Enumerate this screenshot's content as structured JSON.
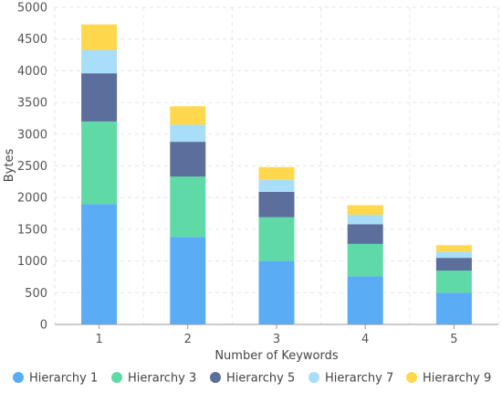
{
  "chart_data": {
    "type": "bar",
    "stacked": true,
    "categories": [
      "1",
      "2",
      "3",
      "4",
      "5"
    ],
    "series": [
      {
        "name": "Hierarchy 1",
        "color": "#5aacf4",
        "values": [
          1900,
          1380,
          1000,
          760,
          500
        ]
      },
      {
        "name": "Hierarchy 3",
        "color": "#5fdaa7",
        "values": [
          1300,
          950,
          690,
          510,
          350
        ]
      },
      {
        "name": "Hierarchy 5",
        "color": "#5b6e9c",
        "values": [
          760,
          550,
          400,
          310,
          200
        ]
      },
      {
        "name": "Hierarchy 7",
        "color": "#a9def8",
        "values": [
          370,
          270,
          190,
          150,
          100
        ]
      },
      {
        "name": "Hierarchy 9",
        "color": "#ffd84d",
        "values": [
          400,
          290,
          200,
          150,
          100
        ]
      }
    ],
    "title": "",
    "xlabel": "Number of Keywords",
    "ylabel": "Bytes",
    "ylim": [
      0,
      5000
    ],
    "yticks": [
      0,
      500,
      1000,
      1500,
      2000,
      2500,
      3000,
      3500,
      4000,
      4500,
      5000
    ],
    "grid": true,
    "legend_position": "bottom"
  }
}
